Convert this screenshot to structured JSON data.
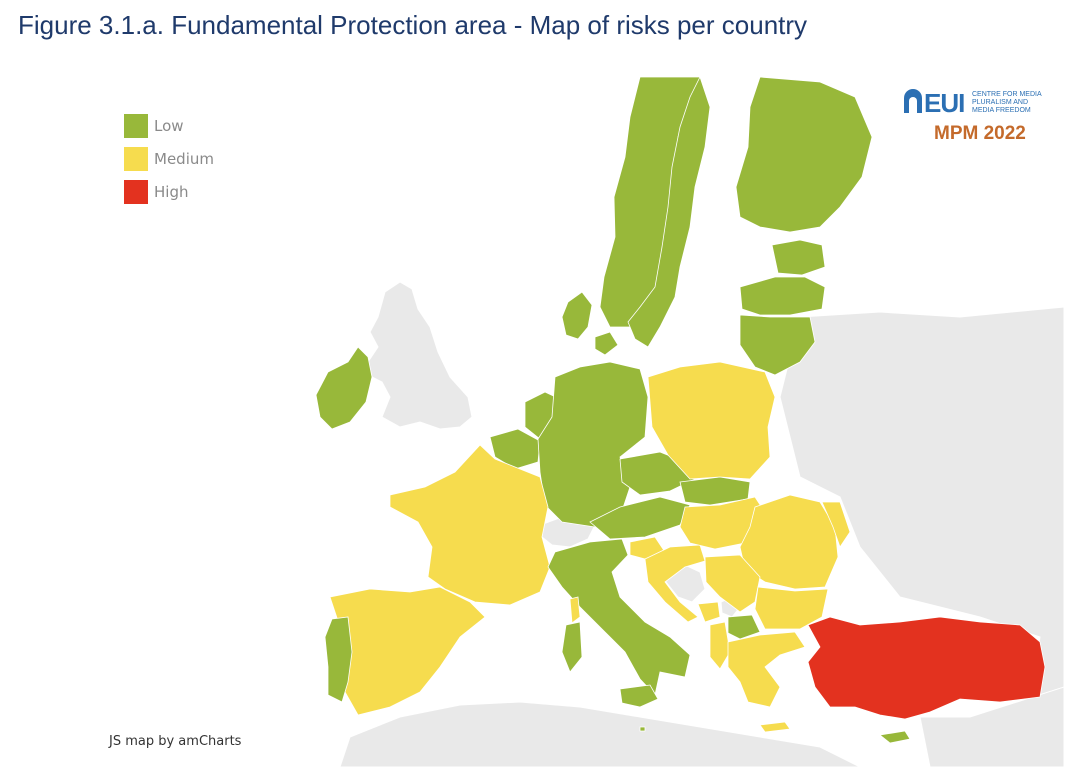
{
  "title": "Figure 3.1.a. Fundamental Protection area - Map of risks per country",
  "legend": [
    {
      "label": "Low",
      "color": "#98b83a"
    },
    {
      "label": "Medium",
      "color": "#f6dc4e"
    },
    {
      "label": "High",
      "color": "#e3321f"
    }
  ],
  "credit": "JS map by amCharts",
  "logo": {
    "name": "EUI",
    "subtitle": "CENTRE FOR MEDIA PLURALISM AND MEDIA FREEDOM",
    "edition": "MPM 2022"
  },
  "colors": {
    "low": "#98b83a",
    "medium": "#f6dc4e",
    "high": "#e3321f",
    "background_land": "#e9e9e9",
    "sea": "#ffffff",
    "title": "#1f3a6b"
  },
  "countries": [
    {
      "name": "Norway",
      "risk": "Low"
    },
    {
      "name": "Sweden",
      "risk": "Low"
    },
    {
      "name": "Finland",
      "risk": "Low"
    },
    {
      "name": "Estonia",
      "risk": "Low"
    },
    {
      "name": "Latvia",
      "risk": "Low"
    },
    {
      "name": "Lithuania",
      "risk": "Low"
    },
    {
      "name": "Denmark",
      "risk": "Low"
    },
    {
      "name": "Ireland",
      "risk": "Low"
    },
    {
      "name": "Netherlands",
      "risk": "Low"
    },
    {
      "name": "Belgium",
      "risk": "Low"
    },
    {
      "name": "Luxembourg",
      "risk": "Low"
    },
    {
      "name": "Germany",
      "risk": "Low"
    },
    {
      "name": "Czechia",
      "risk": "Low"
    },
    {
      "name": "Slovakia",
      "risk": "Low"
    },
    {
      "name": "Austria",
      "risk": "Low"
    },
    {
      "name": "Italy",
      "risk": "Low"
    },
    {
      "name": "Portugal",
      "risk": "Low"
    },
    {
      "name": "North Macedonia",
      "risk": "Low"
    },
    {
      "name": "Cyprus",
      "risk": "Low"
    },
    {
      "name": "Malta",
      "risk": "Low"
    },
    {
      "name": "Poland",
      "risk": "Medium"
    },
    {
      "name": "France",
      "risk": "Medium"
    },
    {
      "name": "Spain",
      "risk": "Medium"
    },
    {
      "name": "Slovenia",
      "risk": "Medium"
    },
    {
      "name": "Croatia",
      "risk": "Medium"
    },
    {
      "name": "Hungary",
      "risk": "Medium"
    },
    {
      "name": "Romania",
      "risk": "Medium"
    },
    {
      "name": "Bulgaria",
      "risk": "Medium"
    },
    {
      "name": "Serbia",
      "risk": "Medium"
    },
    {
      "name": "Montenegro",
      "risk": "Medium"
    },
    {
      "name": "Albania",
      "risk": "Medium"
    },
    {
      "name": "Greece",
      "risk": "Medium"
    },
    {
      "name": "Moldova",
      "risk": "Medium"
    },
    {
      "name": "Turkey",
      "risk": "High"
    }
  ]
}
